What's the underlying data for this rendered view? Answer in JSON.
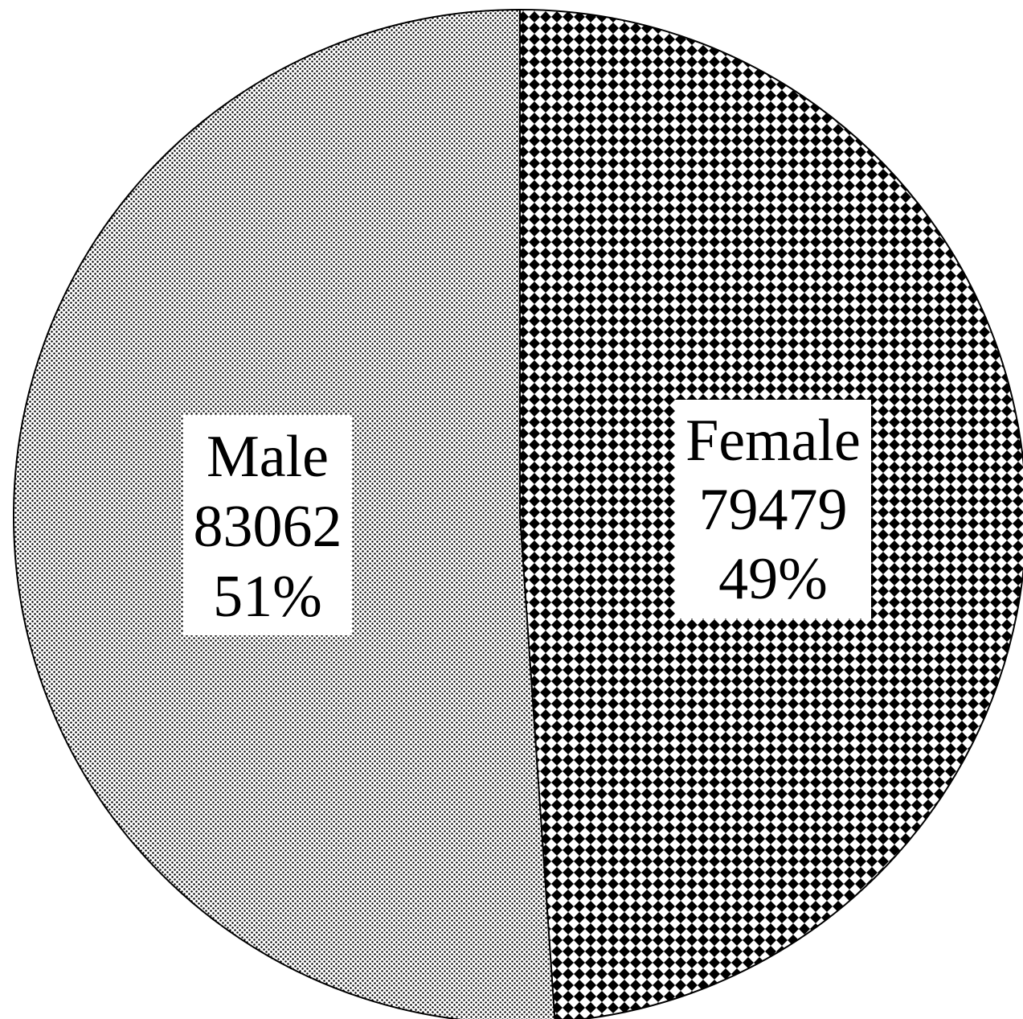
{
  "chart_data": {
    "type": "pie",
    "slices": [
      {
        "label": "Male",
        "value": 83062,
        "percent_label": "51%",
        "pattern": "fine-dots"
      },
      {
        "label": "Female",
        "value": 79479,
        "percent_label": "49%",
        "pattern": "diamond-checker"
      }
    ],
    "value_labels": [
      "83062",
      "79479"
    ],
    "colors": {
      "ink": "#000000",
      "paper": "#ffffff"
    }
  }
}
